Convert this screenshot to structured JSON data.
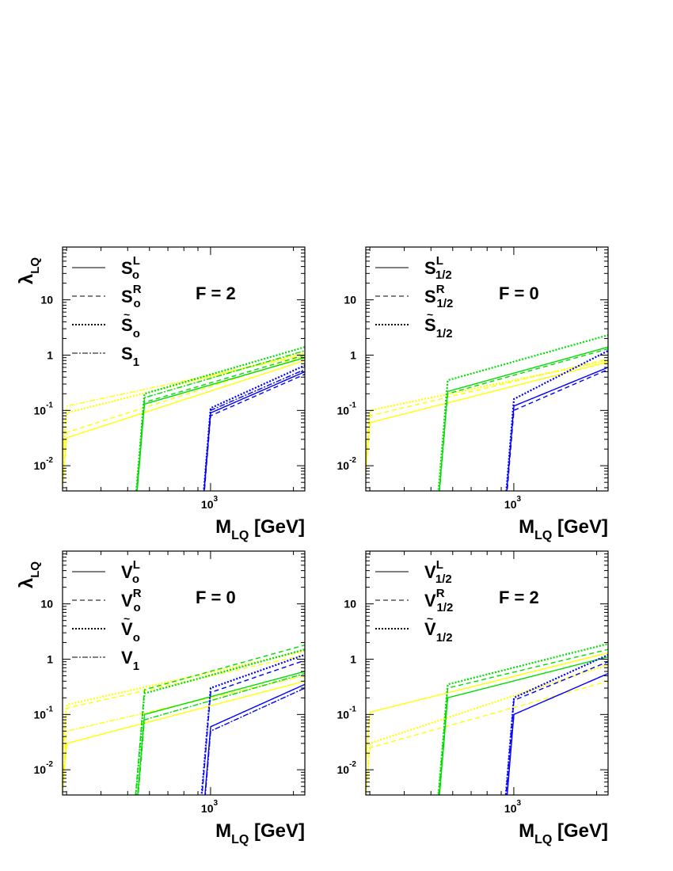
{
  "figure": {
    "x_axis_label": "M",
    "x_axis_sub": "LQ",
    "x_axis_unit": "[GeV]",
    "y_axis_label": "λ",
    "y_axis_sub": "LQ",
    "y_tick_labels": [
      {
        "value": 0.01,
        "base": "10",
        "exp": "-2"
      },
      {
        "value": 0.1,
        "base": "10",
        "exp": "-1"
      },
      {
        "value": 1,
        "base": "1",
        "exp": ""
      },
      {
        "value": 10,
        "base": "10",
        "exp": ""
      }
    ],
    "x_tick_label": {
      "value": 1000,
      "base": "10",
      "exp": "3"
    }
  },
  "colors": {
    "yellow": "#ffff00",
    "green": "#00dd00",
    "blue": "#0000ff",
    "axis": "#000000"
  },
  "chart_data": [
    {
      "type": "line",
      "title": "F = 2",
      "xlim": [
        290,
        2200
      ],
      "ylim": [
        0.0035,
        90
      ],
      "xscale": "log",
      "yscale": "log",
      "xlabel": "M_LQ [GeV]",
      "ylabel": "λ_LQ",
      "legend": [
        {
          "label": "S",
          "sup": "L",
          "sub": "o",
          "tilde": false,
          "style": "solid"
        },
        {
          "label": "S",
          "sup": "R",
          "sub": "o",
          "tilde": false,
          "style": "dashed"
        },
        {
          "label": "S",
          "sup": "",
          "sub": "o",
          "tilde": true,
          "style": "dotted"
        },
        {
          "label": "S",
          "sup": "",
          "sub": "1",
          "tilde": false,
          "style": "dashdot"
        }
      ],
      "series": [
        {
          "name": "S_o^L",
          "style": "solid",
          "color": "yellow",
          "threshold": 300,
          "y_at_threshold": 0.032,
          "y_at_2200": 0.8
        },
        {
          "name": "S_o^R",
          "style": "dashed",
          "color": "yellow",
          "threshold": 300,
          "y_at_threshold": 0.04,
          "y_at_2200": 0.95
        },
        {
          "name": "S~_o",
          "style": "dotted",
          "color": "yellow",
          "threshold": 300,
          "y_at_threshold": 0.09,
          "y_at_2200": 1.1
        },
        {
          "name": "S_1",
          "style": "dashdot",
          "color": "yellow",
          "threshold": 300,
          "y_at_threshold": 0.12,
          "y_at_2200": 1.0
        },
        {
          "name": "S_o^L",
          "style": "solid",
          "color": "green",
          "threshold": 575,
          "y_at_threshold": 0.13,
          "y_at_2200": 0.9
        },
        {
          "name": "S_o^R",
          "style": "dashed",
          "color": "green",
          "threshold": 575,
          "y_at_threshold": 0.14,
          "y_at_2200": 1.0
        },
        {
          "name": "S~_o",
          "style": "dotted",
          "color": "green",
          "threshold": 575,
          "y_at_threshold": 0.2,
          "y_at_2200": 1.4
        },
        {
          "name": "S_1",
          "style": "dashdot",
          "color": "green",
          "threshold": 575,
          "y_at_threshold": 0.17,
          "y_at_2200": 1.2
        },
        {
          "name": "S_o^L",
          "style": "solid",
          "color": "blue",
          "threshold": 1000,
          "y_at_threshold": 0.09,
          "y_at_2200": 0.5
        },
        {
          "name": "S_o^R",
          "style": "dashed",
          "color": "blue",
          "threshold": 1000,
          "y_at_threshold": 0.08,
          "y_at_2200": 0.45
        },
        {
          "name": "S~_o",
          "style": "dotted",
          "color": "blue",
          "threshold": 1000,
          "y_at_threshold": 0.11,
          "y_at_2200": 0.65
        },
        {
          "name": "S_1",
          "style": "dashdot",
          "color": "blue",
          "threshold": 1000,
          "y_at_threshold": 0.1,
          "y_at_2200": 0.55
        }
      ]
    },
    {
      "type": "line",
      "title": "F = 0",
      "xlim": [
        290,
        2200
      ],
      "ylim": [
        0.0035,
        90
      ],
      "xscale": "log",
      "yscale": "log",
      "xlabel": "M_LQ [GeV]",
      "ylabel": "",
      "legend": [
        {
          "label": "S",
          "sup": "L",
          "sub": "1/2",
          "tilde": false,
          "style": "solid"
        },
        {
          "label": "S",
          "sup": "R",
          "sub": "1/2",
          "tilde": false,
          "style": "dashed"
        },
        {
          "label": "S",
          "sup": "",
          "sub": "1/2",
          "tilde": true,
          "style": "dotted"
        }
      ],
      "series": [
        {
          "name": "S_1/2^L",
          "style": "solid",
          "color": "yellow",
          "threshold": 300,
          "y_at_threshold": 0.06,
          "y_at_2200": 0.75
        },
        {
          "name": "S_1/2^R",
          "style": "dashed",
          "color": "yellow",
          "threshold": 300,
          "y_at_threshold": 0.08,
          "y_at_2200": 0.85
        },
        {
          "name": "S~_1/2",
          "style": "dotted",
          "color": "yellow",
          "threshold": 300,
          "y_at_threshold": 0.1,
          "y_at_2200": 0.8
        },
        {
          "name": "S_1/2^L",
          "style": "solid",
          "color": "green",
          "threshold": 575,
          "y_at_threshold": 0.22,
          "y_at_2200": 1.4
        },
        {
          "name": "S_1/2^R",
          "style": "dashed",
          "color": "green",
          "threshold": 575,
          "y_at_threshold": 0.2,
          "y_at_2200": 1.3
        },
        {
          "name": "S~_1/2",
          "style": "dotted",
          "color": "green",
          "threshold": 575,
          "y_at_threshold": 0.35,
          "y_at_2200": 2.3
        },
        {
          "name": "S_1/2^L",
          "style": "solid",
          "color": "blue",
          "threshold": 1000,
          "y_at_threshold": 0.12,
          "y_at_2200": 0.6
        },
        {
          "name": "S_1/2^R",
          "style": "dashed",
          "color": "blue",
          "threshold": 1000,
          "y_at_threshold": 0.1,
          "y_at_2200": 0.55
        },
        {
          "name": "S~_1/2",
          "style": "dotted",
          "color": "blue",
          "threshold": 1000,
          "y_at_threshold": 0.16,
          "y_at_2200": 1.2
        }
      ]
    },
    {
      "type": "line",
      "title": "F = 0",
      "xlim": [
        290,
        2200
      ],
      "ylim": [
        0.0035,
        90
      ],
      "xscale": "log",
      "yscale": "log",
      "xlabel": "M_LQ [GeV]",
      "ylabel": "λ_LQ",
      "legend": [
        {
          "label": "V",
          "sup": "L",
          "sub": "o",
          "tilde": false,
          "style": "solid"
        },
        {
          "label": "V",
          "sup": "R",
          "sub": "o",
          "tilde": false,
          "style": "dashed"
        },
        {
          "label": "V",
          "sup": "",
          "sub": "o",
          "tilde": true,
          "style": "dotted"
        },
        {
          "label": "V",
          "sup": "",
          "sub": "1",
          "tilde": false,
          "style": "dashdot"
        }
      ],
      "series": [
        {
          "name": "V_o^L",
          "style": "solid",
          "color": "yellow",
          "threshold": 300,
          "y_at_threshold": 0.03,
          "y_at_2200": 0.4
        },
        {
          "name": "V_o^R",
          "style": "dashed",
          "color": "yellow",
          "threshold": 300,
          "y_at_threshold": 0.13,
          "y_at_2200": 1.2
        },
        {
          "name": "V~_o",
          "style": "dotted",
          "color": "yellow",
          "threshold": 300,
          "y_at_threshold": 0.15,
          "y_at_2200": 1.4
        },
        {
          "name": "V_1",
          "style": "dashdot",
          "color": "yellow",
          "threshold": 300,
          "y_at_threshold": 0.05,
          "y_at_2200": 0.5
        },
        {
          "name": "V_o^L",
          "style": "solid",
          "color": "green",
          "threshold": 575,
          "y_at_threshold": 0.1,
          "y_at_2200": 0.6
        },
        {
          "name": "V_o^R",
          "style": "dashed",
          "color": "green",
          "threshold": 575,
          "y_at_threshold": 0.28,
          "y_at_2200": 1.8
        },
        {
          "name": "V~_o",
          "style": "dotted",
          "color": "green",
          "threshold": 575,
          "y_at_threshold": 0.24,
          "y_at_2200": 1.5
        },
        {
          "name": "V_1",
          "style": "dashdot",
          "color": "green",
          "threshold": 575,
          "y_at_threshold": 0.08,
          "y_at_2200": 0.55
        },
        {
          "name": "V_o^L",
          "style": "solid",
          "color": "blue",
          "threshold": 1000,
          "y_at_threshold": 0.06,
          "y_at_2200": 0.35
        },
        {
          "name": "V_o^R",
          "style": "dashed",
          "color": "blue",
          "threshold": 1000,
          "y_at_threshold": 0.25,
          "y_at_2200": 0.95
        },
        {
          "name": "V~_o",
          "style": "dotted",
          "color": "blue",
          "threshold": 1000,
          "y_at_threshold": 0.3,
          "y_at_2200": 1.2
        },
        {
          "name": "V_1",
          "style": "dashdot",
          "color": "blue",
          "threshold": 1000,
          "y_at_threshold": 0.05,
          "y_at_2200": 0.3
        }
      ]
    },
    {
      "type": "line",
      "title": "F = 2",
      "xlim": [
        290,
        2200
      ],
      "ylim": [
        0.0035,
        90
      ],
      "xscale": "log",
      "yscale": "log",
      "xlabel": "M_LQ [GeV]",
      "ylabel": "",
      "legend": [
        {
          "label": "V",
          "sup": "L",
          "sub": "1/2",
          "tilde": false,
          "style": "solid"
        },
        {
          "label": "V",
          "sup": "R",
          "sub": "1/2",
          "tilde": false,
          "style": "dashed"
        },
        {
          "label": "V",
          "sup": "",
          "sub": "1/2",
          "tilde": true,
          "style": "dotted"
        }
      ],
      "series": [
        {
          "name": "V_1/2^L",
          "style": "solid",
          "color": "yellow",
          "threshold": 300,
          "y_at_threshold": 0.11,
          "y_at_2200": 1.3
        },
        {
          "name": "V_1/2^R",
          "style": "dashed",
          "color": "yellow",
          "threshold": 300,
          "y_at_threshold": 0.025,
          "y_at_2200": 0.4
        },
        {
          "name": "V~_1/2",
          "style": "dotted",
          "color": "yellow",
          "threshold": 300,
          "y_at_threshold": 0.03,
          "y_at_2200": 0.8
        },
        {
          "name": "V_1/2^L",
          "style": "solid",
          "color": "green",
          "threshold": 575,
          "y_at_threshold": 0.2,
          "y_at_2200": 1.1
        },
        {
          "name": "V_1/2^R",
          "style": "dashed",
          "color": "green",
          "threshold": 575,
          "y_at_threshold": 0.3,
          "y_at_2200": 1.5
        },
        {
          "name": "V~_1/2",
          "style": "dotted",
          "color": "green",
          "threshold": 575,
          "y_at_threshold": 0.35,
          "y_at_2200": 1.9
        },
        {
          "name": "V_1/2^L",
          "style": "solid",
          "color": "blue",
          "threshold": 1000,
          "y_at_threshold": 0.1,
          "y_at_2200": 0.55
        },
        {
          "name": "V_1/2^R",
          "style": "dashed",
          "color": "blue",
          "threshold": 1000,
          "y_at_threshold": 0.18,
          "y_at_2200": 0.9
        },
        {
          "name": "V~_1/2",
          "style": "dotted",
          "color": "blue",
          "threshold": 1000,
          "y_at_threshold": 0.2,
          "y_at_2200": 1.2
        }
      ]
    }
  ]
}
